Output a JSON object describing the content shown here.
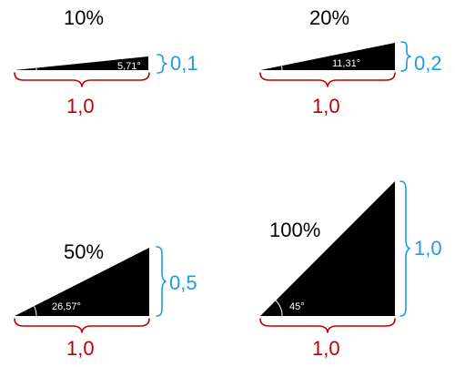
{
  "colors": {
    "triangle": "#000000",
    "run": "#c00000",
    "rise": "#1e9be8",
    "angle_text": "#ffffff"
  },
  "panels": [
    {
      "percent": "10%",
      "angle": "5,71°",
      "run": "1,0",
      "rise": "0,1"
    },
    {
      "percent": "20%",
      "angle": "11,31°",
      "run": "1,0",
      "rise": "0,2"
    },
    {
      "percent": "50%",
      "angle": "26,57°",
      "run": "1,0",
      "rise": "0,5"
    },
    {
      "percent": "100%",
      "angle": "45°",
      "run": "1,0",
      "rise": "1,0"
    }
  ]
}
